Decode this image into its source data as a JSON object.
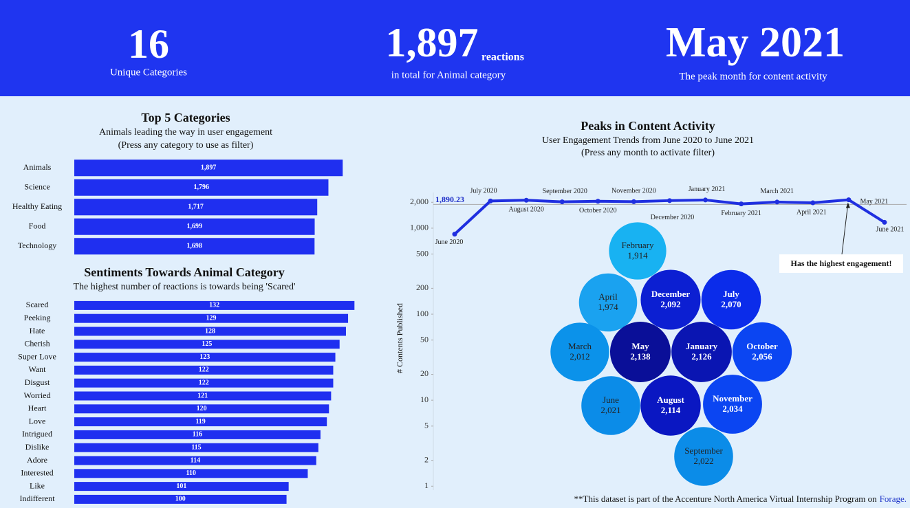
{
  "header": {
    "kpis": [
      {
        "value": "16",
        "label": "Unique Categories"
      },
      {
        "value": "1,897",
        "unit": "reactions",
        "label": "in total for Animal category"
      },
      {
        "value": "May 2021",
        "label": "The peak month for content activity"
      }
    ]
  },
  "chart_data": [
    {
      "type": "bar",
      "title": "Top 5 Categories",
      "subtitle": "Animals leading the way in user engagement",
      "note": "(Press any category to use as filter)",
      "categories": [
        "Animals",
        "Science",
        "Healthy Eating",
        "Food",
        "Technology"
      ],
      "values": [
        1897,
        1796,
        1717,
        1699,
        1698
      ],
      "value_labels": [
        "1,897",
        "1,796",
        "1,717",
        "1,699",
        "1,698"
      ],
      "color": "#1f2ff0",
      "xlim": [
        0,
        2100
      ]
    },
    {
      "type": "bar",
      "title": "Sentiments Towards Animal Category",
      "subtitle": "The highest number of reactions is towards being 'Scared'",
      "categories": [
        "Scared",
        "Peeking",
        "Hate",
        "Cherish",
        "Super Love",
        "Want",
        "Disgust",
        "Worried",
        "Heart",
        "Love",
        "Intrigued",
        "Dislike",
        "Adore",
        "Interested",
        "Like",
        "Indifferent"
      ],
      "values": [
        132,
        129,
        128,
        125,
        123,
        122,
        122,
        121,
        120,
        119,
        116,
        115,
        114,
        110,
        101,
        100
      ],
      "color": "#1f2ff0",
      "xlim": [
        0,
        140
      ]
    },
    {
      "type": "line",
      "title": "Peaks in Content Activity",
      "subtitle": "User Engagement Trends from June 2020 to June 2021",
      "note": "(Press any month to activate filter)",
      "y_label": "# Contents Published",
      "categories": [
        "June 2020",
        "July 2020",
        "August 2020",
        "September 2020",
        "October 2020",
        "November 2020",
        "December 2020",
        "January 2021",
        "February 2021",
        "March 2021",
        "April 2021",
        "May 2021",
        "June 2021"
      ],
      "values": [
        852,
        2070,
        2114,
        2022,
        2056,
        2034,
        2092,
        2126,
        1914,
        2012,
        1974,
        2138,
        1169
      ],
      "color": "#1f2fe0",
      "log_scale": true,
      "ylim": [
        0.9,
        2600
      ],
      "yticks": [
        1,
        2,
        5,
        10,
        20,
        50,
        100,
        200,
        500,
        {
          "value": 1000,
          "label": "1,000"
        },
        {
          "value": 2000,
          "label": "2,000"
        }
      ],
      "reference_line": {
        "value": 1890.23,
        "label": "1,890.23"
      },
      "annotation": "Has the highest engagement!"
    },
    {
      "type": "bubble",
      "categories": [
        "February",
        "April",
        "December",
        "July",
        "March",
        "May",
        "January",
        "October",
        "June",
        "August",
        "November",
        "September"
      ],
      "values": [
        1914,
        1974,
        2092,
        2070,
        2012,
        2138,
        2126,
        2056,
        2021,
        2114,
        2034,
        2022
      ],
      "value_labels": [
        "1,914",
        "1,974",
        "2,092",
        "2,070",
        "2,012",
        "2,138",
        "2,126",
        "2,056",
        "2,021",
        "2,114",
        "2,034",
        "2,022"
      ],
      "colors": [
        "#18b2f2",
        "#1aa2f0",
        "#0c1fd2",
        "#0b2cea",
        "#0b92ea",
        "#0a0f98",
        "#0a15b2",
        "#0b45f2",
        "#0b8ce8",
        "#0a17c2",
        "#0b45f2",
        "#0b8ce8"
      ]
    }
  ],
  "footer": {
    "text": "**This dataset is part of the Accenture North America Virtual Internship Program on",
    "link": "Forage."
  }
}
